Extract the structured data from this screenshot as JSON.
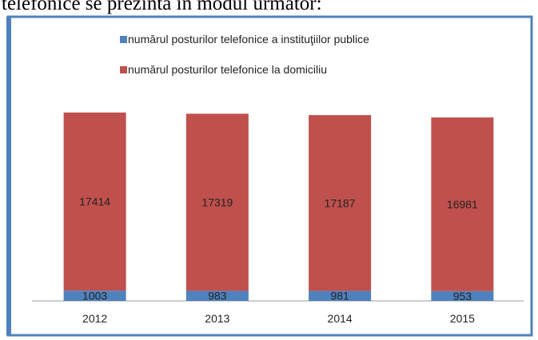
{
  "caption": "telefonice se prezintă în modul următor:",
  "chart_data": {
    "type": "stacked_bar",
    "categories": [
      "2012",
      "2013",
      "2014",
      "2015"
    ],
    "series": [
      {
        "name": "numărul posturilor telefonice a instituţiilor publice",
        "color": "#4f81bd",
        "values": [
          1003,
          983,
          981,
          953
        ]
      },
      {
        "name": "numărul posturilor telefonice la domiciliu",
        "color": "#c0504d",
        "values": [
          17414,
          17319,
          17187,
          16981
        ]
      }
    ],
    "data_labels": true
  }
}
